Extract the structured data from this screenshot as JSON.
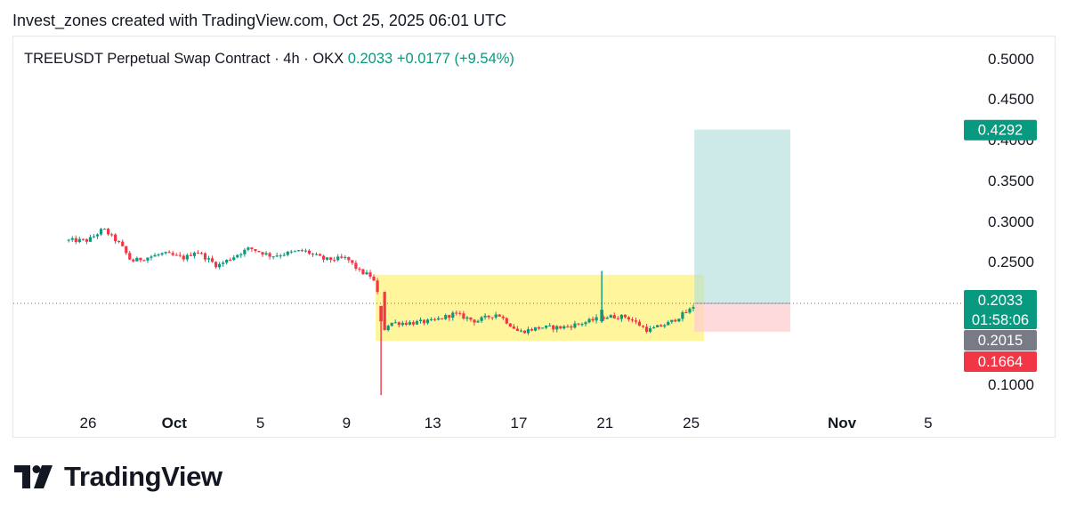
{
  "header": {
    "attribution": "Invest_zones created with TradingView.com, Oct 25, 2025 06:01 UTC"
  },
  "logo": {
    "text": "TradingView",
    "icon": "tradingview-logo-icon"
  },
  "chart_data": {
    "type": "candlestick",
    "title": {
      "symbol": "TREEUSDT Perpetual Swap Contract · 4h · OKX",
      "last": "0.2033",
      "change": "+0.0177 (+9.54%)"
    },
    "x_ticks": [
      {
        "label": "26",
        "day": 0,
        "bold": false
      },
      {
        "label": "Oct",
        "day": 4,
        "bold": true
      },
      {
        "label": "5",
        "day": 8,
        "bold": false
      },
      {
        "label": "9",
        "day": 12,
        "bold": false
      },
      {
        "label": "13",
        "day": 16,
        "bold": false
      },
      {
        "label": "17",
        "day": 20,
        "bold": false
      },
      {
        "label": "21",
        "day": 24,
        "bold": false
      },
      {
        "label": "25",
        "day": 28,
        "bold": false
      },
      {
        "label": "Nov",
        "day": 35,
        "bold": true
      },
      {
        "label": "5",
        "day": 39,
        "bold": false
      }
    ],
    "y_ticks": [
      "0.5000",
      "0.4500",
      "0.4000",
      "0.3500",
      "0.3000",
      "0.2500",
      "0.1000"
    ],
    "price_labels": [
      {
        "text": "0.4292",
        "value": 0.4292,
        "color": "#089981"
      },
      {
        "text": "0.2033",
        "value": 0.2033,
        "color": "#089981",
        "sub": "01:58:06"
      },
      {
        "text": "0.2015",
        "value": 0.2015,
        "color": "#787b86"
      },
      {
        "text": "0.1664",
        "value": 0.1664,
        "color": "#f23645"
      }
    ],
    "last_price": 0.2033,
    "consolidation_box": {
      "day_start": 13.35,
      "day_end": 28.6,
      "price_low": 0.1545,
      "price_high": 0.2405,
      "color": "#fff176"
    },
    "long_position": {
      "day_start": 28.15,
      "day_end": 32.6,
      "entry": 0.2033,
      "target": 0.4292,
      "stop": 0.1664,
      "profit_color": "#b2dfdb",
      "loss_color": "#ffcdd2"
    },
    "anchors": [
      [
        -0.9,
        0.285
      ],
      [
        0.0,
        0.285
      ],
      [
        0.7,
        0.3
      ],
      [
        1.5,
        0.28
      ],
      [
        2.0,
        0.258
      ],
      [
        3.5,
        0.268
      ],
      [
        4.5,
        0.262
      ],
      [
        5.0,
        0.272
      ],
      [
        6.0,
        0.252
      ],
      [
        7.0,
        0.268
      ],
      [
        7.5,
        0.275
      ],
      [
        8.5,
        0.265
      ],
      [
        10.0,
        0.272
      ],
      [
        11.0,
        0.26
      ],
      [
        12.0,
        0.262
      ],
      [
        12.6,
        0.245
      ],
      [
        13.2,
        0.238
      ],
      [
        13.5,
        0.21
      ],
      [
        13.7,
        0.168
      ],
      [
        14.0,
        0.178
      ],
      [
        15.0,
        0.178
      ],
      [
        16.0,
        0.18
      ],
      [
        17.0,
        0.19
      ],
      [
        18.0,
        0.18
      ],
      [
        19.0,
        0.19
      ],
      [
        20.0,
        0.166
      ],
      [
        21.0,
        0.172
      ],
      [
        22.0,
        0.172
      ],
      [
        23.0,
        0.178
      ],
      [
        24.0,
        0.186
      ],
      [
        25.0,
        0.186
      ],
      [
        26.0,
        0.168
      ],
      [
        27.0,
        0.178
      ],
      [
        28.0,
        0.196
      ],
      [
        28.2,
        0.2033
      ]
    ],
    "spikes": [
      {
        "day": 13.6,
        "high": 0.19,
        "low": 0.084,
        "open": 0.2,
        "close": 0.18,
        "up": false
      },
      {
        "day": 23.85,
        "high": 0.2455,
        "low": 0.178,
        "open": 0.18,
        "close": 0.195,
        "up": true
      }
    ],
    "colors": {
      "up": "#089981",
      "down": "#f23645"
    }
  }
}
